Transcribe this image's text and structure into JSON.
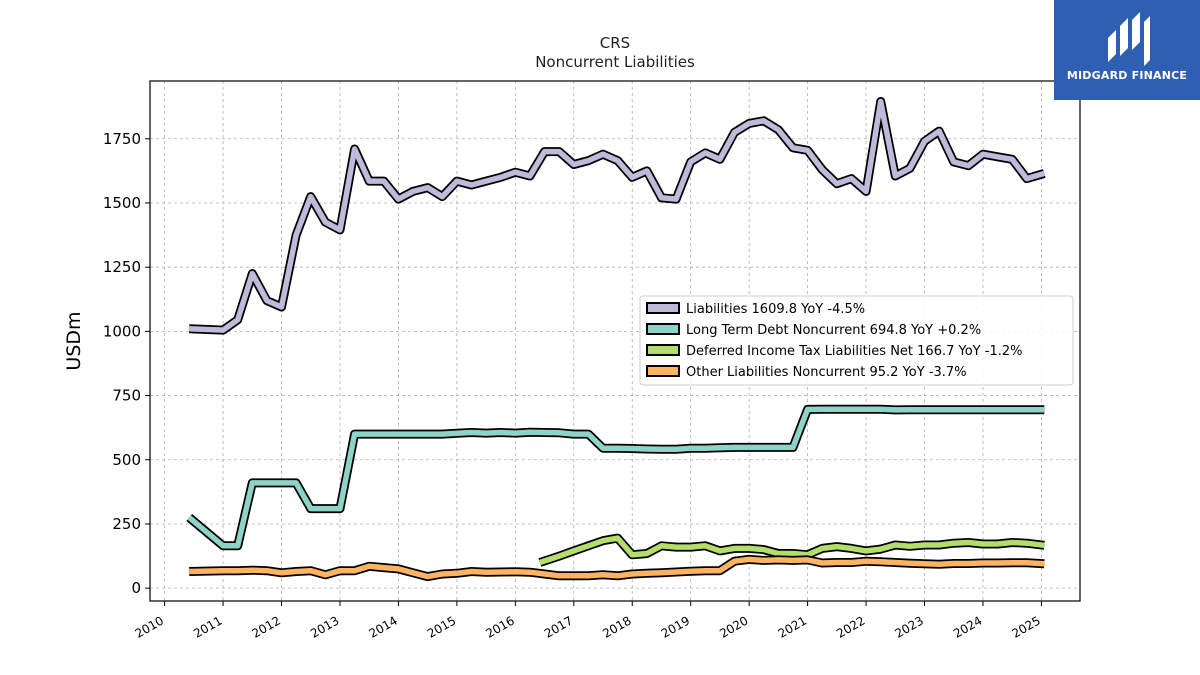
{
  "brand": {
    "name": "MIDGARD FINANCE",
    "bg_color": "#2f5fb3",
    "icon": "midgard-logo-icon"
  },
  "chart_data": {
    "type": "line",
    "title": "CRS",
    "subtitle": "Noncurrent  Liabilities",
    "xlabel": "",
    "ylabel": "USDm",
    "xlim": [
      2009.75,
      2025.66
    ],
    "ylim": [
      -50,
      1975
    ],
    "x_ticks": [
      "2010",
      "2011",
      "2012",
      "2013",
      "2014",
      "2015",
      "2016",
      "2017",
      "2018",
      "2019",
      "2020",
      "2021",
      "2022",
      "2023",
      "2024",
      "2025"
    ],
    "y_ticks": [
      0,
      250,
      500,
      750,
      1000,
      1250,
      1500,
      1750
    ],
    "grid": true,
    "legend_position": "center-right",
    "series": [
      {
        "name": "Liabilities",
        "legend_label": "Liabilities  1609.8 YoY -4.5%",
        "color": "#bebada",
        "x": [
          2010.42,
          2011.0,
          2011.25,
          2011.5,
          2011.75,
          2012.0,
          2012.25,
          2012.5,
          2012.75,
          2013.0,
          2013.25,
          2013.5,
          2013.75,
          2014.0,
          2014.25,
          2014.5,
          2014.75,
          2015.0,
          2015.25,
          2015.5,
          2015.75,
          2016.0,
          2016.25,
          2016.5,
          2016.75,
          2017.0,
          2017.25,
          2017.5,
          2017.75,
          2018.0,
          2018.25,
          2018.5,
          2018.75,
          2019.0,
          2019.25,
          2019.5,
          2019.75,
          2020.0,
          2020.25,
          2020.5,
          2020.75,
          2021.0,
          2021.25,
          2021.5,
          2021.75,
          2022.0,
          2022.25,
          2022.5,
          2022.75,
          2023.0,
          2023.25,
          2023.5,
          2023.75,
          2024.0,
          2024.25,
          2024.5,
          2024.75,
          2025.05
        ],
        "y": [
          1010,
          1005,
          1045,
          1225,
          1120,
          1095,
          1375,
          1525,
          1425,
          1395,
          1710,
          1585,
          1585,
          1515,
          1545,
          1560,
          1525,
          1585,
          1570,
          1585,
          1600,
          1620,
          1605,
          1700,
          1700,
          1650,
          1665,
          1690,
          1665,
          1600,
          1625,
          1520,
          1515,
          1660,
          1695,
          1670,
          1775,
          1810,
          1820,
          1785,
          1715,
          1705,
          1630,
          1575,
          1595,
          1545,
          1895,
          1605,
          1635,
          1740,
          1780,
          1660,
          1645,
          1690,
          1680,
          1670,
          1595,
          1615
        ]
      },
      {
        "name": "Long Term Debt Noncurrent",
        "legend_label": "Long Term Debt Noncurrent  694.8 YoY +0.2%",
        "color": "#8dd3c7",
        "x": [
          2010.42,
          2011.0,
          2011.25,
          2011.5,
          2011.75,
          2012.0,
          2012.25,
          2012.5,
          2012.75,
          2013.0,
          2013.25,
          2013.5,
          2013.75,
          2014.0,
          2014.25,
          2014.5,
          2014.75,
          2015.0,
          2015.25,
          2015.5,
          2015.75,
          2016.0,
          2016.25,
          2016.5,
          2016.75,
          2017.0,
          2017.25,
          2017.5,
          2017.75,
          2018.0,
          2018.25,
          2018.5,
          2018.75,
          2019.0,
          2019.25,
          2019.5,
          2019.75,
          2020.0,
          2020.25,
          2020.5,
          2020.75,
          2021.0,
          2021.25,
          2021.5,
          2021.75,
          2022.0,
          2022.25,
          2022.5,
          2022.75,
          2023.0,
          2023.25,
          2023.5,
          2023.75,
          2024.0,
          2024.25,
          2024.5,
          2024.75,
          2025.05
        ],
        "y": [
          275,
          165,
          165,
          410,
          410,
          410,
          410,
          310,
          310,
          310,
          600,
          600,
          600,
          600,
          600,
          600,
          600,
          603,
          606,
          604,
          606,
          604,
          607,
          606,
          605,
          600,
          600,
          545,
          545,
          544,
          542,
          541,
          541,
          545,
          545,
          547,
          548,
          548,
          548,
          548,
          548,
          696,
          697,
          697,
          697,
          697,
          697,
          694,
          695,
          695,
          695,
          695,
          695,
          695,
          695,
          695,
          695,
          695
        ]
      },
      {
        "name": "Deferred Income Tax Liabilities Net",
        "legend_label": "Deferred Income Tax Liabilities Net  166.7 YoY -1.2%",
        "color": "#b3de69",
        "x": [
          2016.42,
          2016.75,
          2017.0,
          2017.25,
          2017.5,
          2017.75,
          2018.0,
          2018.25,
          2018.5,
          2018.75,
          2019.0,
          2019.25,
          2019.5,
          2019.75,
          2020.0,
          2020.25,
          2020.5,
          2020.75,
          2021.0,
          2021.25,
          2021.5,
          2021.75,
          2022.0,
          2022.25,
          2022.5,
          2022.75,
          2023.0,
          2023.25,
          2023.5,
          2023.75,
          2024.0,
          2024.25,
          2024.5,
          2024.75,
          2025.05
        ],
        "y": [
          100,
          125,
          145,
          165,
          185,
          195,
          130,
          135,
          165,
          160,
          160,
          165,
          145,
          155,
          155,
          150,
          135,
          135,
          130,
          155,
          162,
          155,
          145,
          152,
          168,
          163,
          168,
          168,
          175,
          178,
          172,
          172,
          178,
          175,
          167
        ]
      },
      {
        "name": "Other Liabilities Noncurrent",
        "legend_label": "Other Liabilities Noncurrent  95.2 YoY -3.7%",
        "color": "#fdb462",
        "x": [
          2010.42,
          2011.0,
          2011.25,
          2011.5,
          2011.75,
          2012.0,
          2012.25,
          2012.5,
          2012.75,
          2013.0,
          2013.25,
          2013.5,
          2013.75,
          2014.0,
          2014.25,
          2014.5,
          2014.75,
          2015.0,
          2015.25,
          2015.5,
          2015.75,
          2016.0,
          2016.25,
          2016.5,
          2016.75,
          2017.0,
          2017.25,
          2017.5,
          2017.75,
          2018.0,
          2018.25,
          2018.5,
          2018.75,
          2019.0,
          2019.25,
          2019.5,
          2019.75,
          2020.0,
          2020.25,
          2020.5,
          2020.75,
          2021.0,
          2021.25,
          2021.5,
          2021.75,
          2022.0,
          2022.25,
          2022.5,
          2022.75,
          2023.0,
          2023.25,
          2023.5,
          2023.75,
          2024.0,
          2024.25,
          2024.5,
          2024.75,
          2025.05
        ],
        "y": [
          65,
          68,
          68,
          70,
          68,
          60,
          65,
          68,
          52,
          68,
          68,
          85,
          80,
          75,
          60,
          45,
          55,
          58,
          65,
          62,
          63,
          64,
          62,
          55,
          48,
          48,
          48,
          52,
          48,
          55,
          58,
          60,
          63,
          66,
          68,
          68,
          105,
          112,
          108,
          110,
          108,
          110,
          98,
          100,
          100,
          105,
          103,
          100,
          97,
          95,
          93,
          96,
          96,
          98,
          98,
          99,
          99,
          95
        ]
      }
    ]
  }
}
